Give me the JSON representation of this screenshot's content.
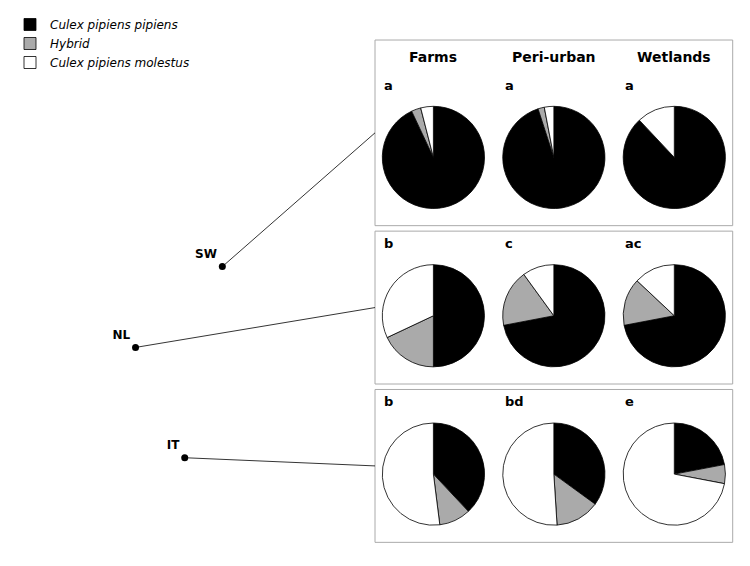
{
  "chart_data": [
    {
      "type": "scatter",
      "x": [
        18.0,
        5.3,
        12.5
      ],
      "values": [
        59.5,
        52.1,
        42.0
      ],
      "annotations": [
        "SW",
        "NL",
        "IT"
      ],
      "color": "#000000",
      "xlim": [
        -12,
        35
      ],
      "ylim": [
        34,
        72
      ],
      "tick_labels": false,
      "grid": false
    },
    {
      "type": "pie",
      "title": "Farms",
      "legend": "upper left",
      "categories": [
        "Culex pipiens pipiens",
        "Hybrid",
        "Culex pipiens molestus"
      ],
      "values": [
        0.93,
        0.03,
        0.04
      ],
      "colors": [
        "#000000",
        "#aaaaaa",
        "#ffffff"
      ],
      "annotations": [
        "a"
      ]
    },
    {
      "type": "pie",
      "title": "Peri-urban",
      "categories": [
        "Culex pipiens pipiens",
        "Hybrid",
        "Culex pipiens molestus"
      ],
      "values": [
        0.95,
        0.02,
        0.03
      ],
      "colors": [
        "#000000",
        "#aaaaaa",
        "#ffffff"
      ],
      "annotations": [
        "a"
      ]
    },
    {
      "type": "pie",
      "title": "Wetlands",
      "categories": [
        "Culex pipiens pipiens",
        "Hybrid",
        "Culex pipiens molestus"
      ],
      "values": [
        0.88,
        0.0,
        0.12
      ],
      "colors": [
        "#000000",
        "#aaaaaa",
        "#ffffff"
      ],
      "annotations": [
        "a"
      ]
    },
    {
      "type": "pie",
      "categories": [
        "Culex pipiens pipiens",
        "Hybrid",
        "Culex pipiens molestus"
      ],
      "values": [
        0.5,
        0.18,
        0.32
      ],
      "colors": [
        "#000000",
        "#aaaaaa",
        "#ffffff"
      ],
      "annotations": [
        "b"
      ]
    },
    {
      "type": "pie",
      "categories": [
        "Culex pipiens pipiens",
        "Hybrid",
        "Culex pipiens molestus"
      ],
      "values": [
        0.72,
        0.18,
        0.1
      ],
      "colors": [
        "#000000",
        "#aaaaaa",
        "#ffffff"
      ],
      "annotations": [
        "c"
      ]
    },
    {
      "type": "pie",
      "categories": [
        "Culex pipiens pipiens",
        "Hybrid",
        "Culex pipiens molestus"
      ],
      "values": [
        0.72,
        0.15,
        0.13
      ],
      "colors": [
        "#000000",
        "#aaaaaa",
        "#ffffff"
      ],
      "annotations": [
        "ac"
      ]
    },
    {
      "type": "pie",
      "categories": [
        "Culex pipiens pipiens",
        "Hybrid",
        "Culex pipiens molestus"
      ],
      "values": [
        0.38,
        0.1,
        0.52
      ],
      "colors": [
        "#000000",
        "#aaaaaa",
        "#ffffff"
      ],
      "annotations": [
        "b"
      ]
    },
    {
      "type": "pie",
      "categories": [
        "Culex pipiens pipiens",
        "Hybrid",
        "Culex pipiens molestus"
      ],
      "values": [
        0.35,
        0.14,
        0.51
      ],
      "colors": [
        "#000000",
        "#aaaaaa",
        "#ffffff"
      ],
      "annotations": [
        "bd"
      ]
    },
    {
      "type": "pie",
      "categories": [
        "Culex pipiens pipiens",
        "Hybrid",
        "Culex pipiens molestus"
      ],
      "values": [
        0.22,
        0.06,
        0.72
      ],
      "colors": [
        "#000000",
        "#aaaaaa",
        "#ffffff"
      ],
      "annotations": [
        "e"
      ]
    }
  ]
}
